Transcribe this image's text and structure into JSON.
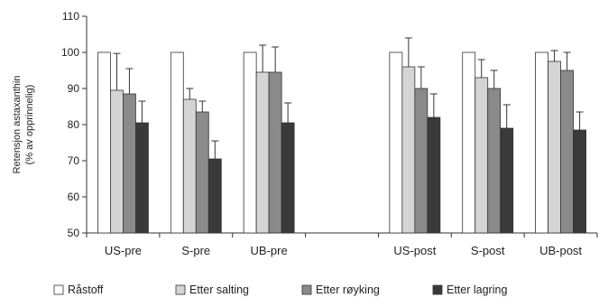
{
  "chart_data": {
    "type": "bar",
    "ylabel_lines": [
      "Retensjon astaxanthin",
      "(% av opprinnelig)"
    ],
    "ylim": [
      50,
      110
    ],
    "yticks": [
      50,
      60,
      70,
      80,
      90,
      100,
      110
    ],
    "categories": [
      "US-pre",
      "S-pre",
      "UB-pre",
      "",
      "US-post",
      "S-post",
      "UB-post"
    ],
    "series": [
      {
        "name": "Råstoff",
        "color": "#ffffff",
        "values": [
          100,
          100,
          100,
          null,
          100,
          100,
          100
        ],
        "errors": [
          0,
          0,
          0,
          null,
          0,
          0,
          0
        ]
      },
      {
        "name": "Etter salting",
        "color": "#d4d4d4",
        "values": [
          89.5,
          87,
          94.5,
          null,
          96,
          93,
          97.5
        ],
        "errors": [
          10.2,
          3,
          7.5,
          null,
          8,
          5,
          3
        ]
      },
      {
        "name": "Etter røyking",
        "color": "#8a8a8a",
        "values": [
          88.5,
          83.5,
          94.5,
          null,
          90,
          90,
          95
        ],
        "errors": [
          7,
          3,
          7,
          null,
          6,
          5,
          5
        ]
      },
      {
        "name": "Etter lagring",
        "color": "#3a3a3a",
        "values": [
          80.5,
          70.5,
          80.5,
          null,
          82,
          79,
          78.5
        ],
        "errors": [
          6,
          5,
          5.5,
          null,
          6.5,
          6.5,
          5
        ]
      }
    ],
    "legend_position": "bottom",
    "grid": false
  }
}
